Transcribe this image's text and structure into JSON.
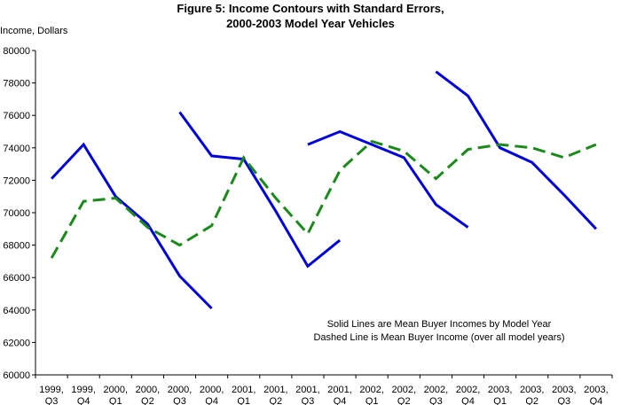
{
  "chart_data": {
    "type": "line",
    "title": "Figure 5: Income Contours with Standard Errors,",
    "subtitle": "2000-2003 Model Year Vehicles",
    "ylabel": "Income, Dollars",
    "xlabel": "",
    "ylim": [
      60000,
      80000
    ],
    "ytick_step": 2000,
    "grid": false,
    "categories": [
      [
        "1999,",
        "Q3"
      ],
      [
        "1999,",
        "Q4"
      ],
      [
        "2000,",
        "Q1"
      ],
      [
        "2000,",
        "Q2"
      ],
      [
        "2000,",
        "Q3"
      ],
      [
        "2000,",
        "Q4"
      ],
      [
        "2001,",
        "Q1"
      ],
      [
        "2001,",
        "Q2"
      ],
      [
        "2001,",
        "Q3"
      ],
      [
        "2001,",
        "Q4"
      ],
      [
        "2002,",
        "Q1"
      ],
      [
        "2002,",
        "Q2"
      ],
      [
        "2002,",
        "Q3"
      ],
      [
        "2002,",
        "Q4"
      ],
      [
        "2003,",
        "Q1"
      ],
      [
        "2003,",
        "Q2"
      ],
      [
        "2003,",
        "Q3"
      ],
      [
        "2003,",
        "Q4"
      ]
    ],
    "annotations": [
      "Solid Lines are Mean Buyer Incomes by Model Year",
      "Dashed Line is Mean Buyer Income (over all model years)"
    ],
    "series": [
      {
        "style": "solid",
        "color": "#0000dd",
        "values": [
          72100,
          74200,
          71000,
          69300,
          66100,
          64100,
          null,
          null,
          null,
          null,
          null,
          null,
          null,
          null,
          null,
          null,
          null,
          null
        ]
      },
      {
        "style": "solid",
        "color": "#0000dd",
        "values": [
          null,
          null,
          null,
          null,
          76200,
          73500,
          73300,
          70100,
          66700,
          68300,
          null,
          null,
          null,
          null,
          null,
          null,
          null,
          null
        ]
      },
      {
        "style": "solid",
        "color": "#0000dd",
        "values": [
          null,
          null,
          null,
          null,
          null,
          null,
          null,
          null,
          74200,
          75000,
          74200,
          73400,
          70500,
          69100,
          null,
          null,
          null,
          null
        ]
      },
      {
        "style": "solid",
        "color": "#0000dd",
        "values": [
          null,
          null,
          null,
          null,
          null,
          null,
          null,
          null,
          null,
          null,
          null,
          null,
          78700,
          77200,
          74000,
          73100,
          71100,
          69000
        ]
      },
      {
        "style": "dashed",
        "color": "#1a8a1a",
        "values": [
          67200,
          70700,
          70900,
          69100,
          68000,
          69200,
          73400,
          70900,
          68700,
          72600,
          74400,
          73800,
          72100,
          73900,
          74200,
          74000,
          73400,
          74200
        ]
      }
    ]
  }
}
